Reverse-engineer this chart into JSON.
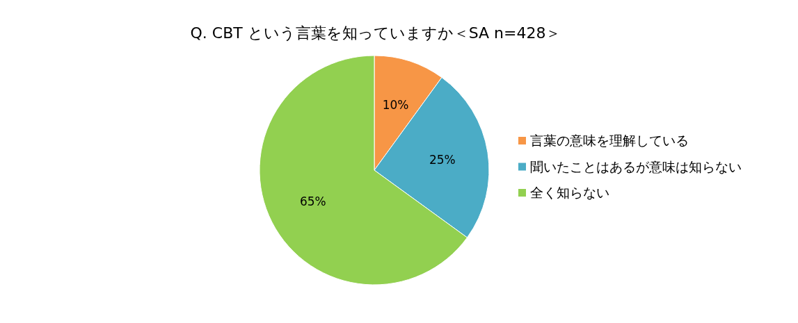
{
  "chart_data": {
    "type": "pie",
    "title": "Q. CBT という言葉を知っていますか＜SA n=428＞",
    "categories": [
      "言葉の意味を理解している",
      "聞いたことはあるが意味は知らない",
      "全く知らない"
    ],
    "values": [
      10,
      25,
      65
    ],
    "colors": [
      "#f79646",
      "#4bacc6",
      "#92d050"
    ],
    "value_labels": [
      "10%",
      "25%",
      "65%"
    ],
    "legend": "right"
  }
}
